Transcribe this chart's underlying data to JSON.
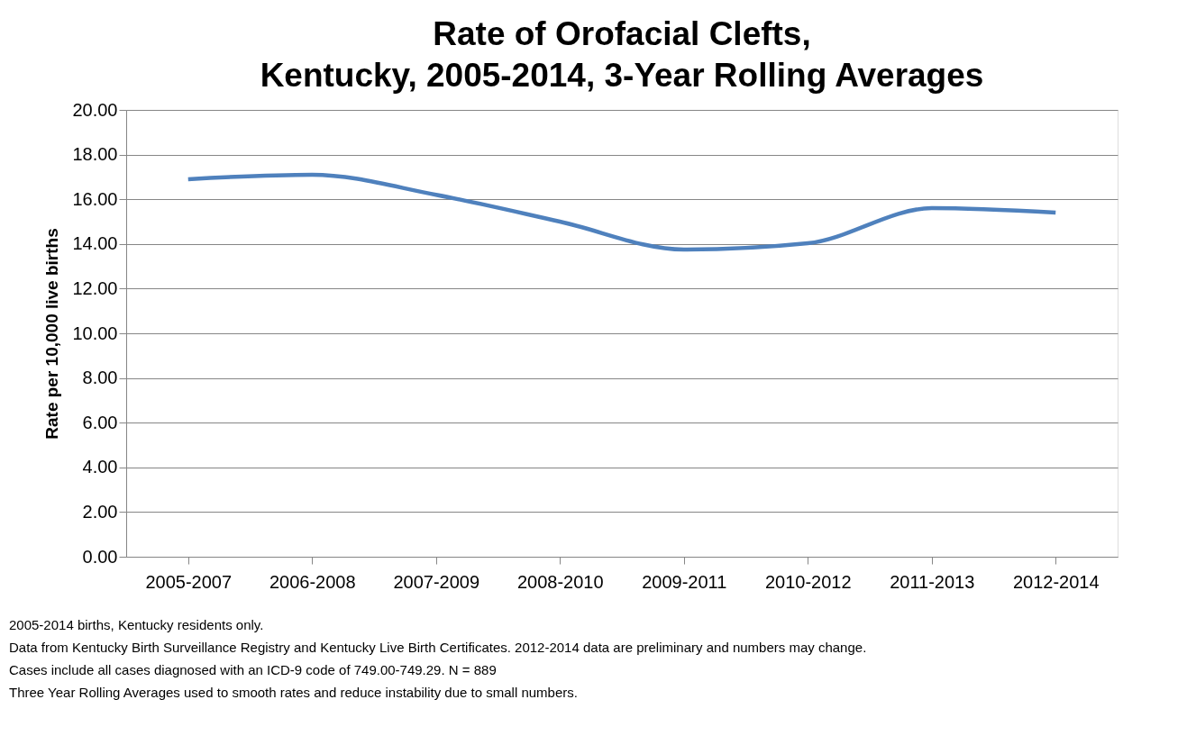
{
  "chart_data": {
    "type": "line",
    "title": "Rate of Orofacial Clefts,\nKentucky, 2005-2014, 3-Year Rolling Averages",
    "ylabel": "Rate per 10,000 live births",
    "categories": [
      "2005-2007",
      "2006-2008",
      "2007-2009",
      "2008-2010",
      "2009-2011",
      "2010-2012",
      "2011-2013",
      "2012-2014"
    ],
    "series": [
      {
        "color": "#4f81bd",
        "values": [
          16.9,
          17.1,
          16.2,
          15.0,
          13.75,
          14.03,
          15.6,
          15.4
        ]
      }
    ],
    "ylim": [
      0,
      20
    ],
    "yticks": [
      {
        "value": 0,
        "label": "0.00"
      },
      {
        "value": 2,
        "label": "2.00"
      },
      {
        "value": 4,
        "label": "4.00"
      },
      {
        "value": 6,
        "label": "6.00"
      },
      {
        "value": 8,
        "label": "8.00"
      },
      {
        "value": 10,
        "label": "10.00"
      },
      {
        "value": 12,
        "label": "12.00"
      },
      {
        "value": 14,
        "label": "14.00"
      },
      {
        "value": 16,
        "label": "16.00"
      },
      {
        "value": 18,
        "label": "18.00"
      },
      {
        "value": 20,
        "label": "20.00"
      }
    ],
    "grid": "y",
    "legend": false,
    "marker": "none",
    "line_style": "solid",
    "annotations": [
      "2005-2014 births, Kentucky residents only.",
      "Data from Kentucky Birth Surveillance Registry and Kentucky Live Birth Certificates. 2012-2014 data are preliminary and numbers may change.",
      "Cases include all cases diagnosed with an ICD-9 code of 749.00-749.29. N = 889",
      "Three Year Rolling Averages used to smooth rates and reduce instability due to small numbers."
    ]
  }
}
